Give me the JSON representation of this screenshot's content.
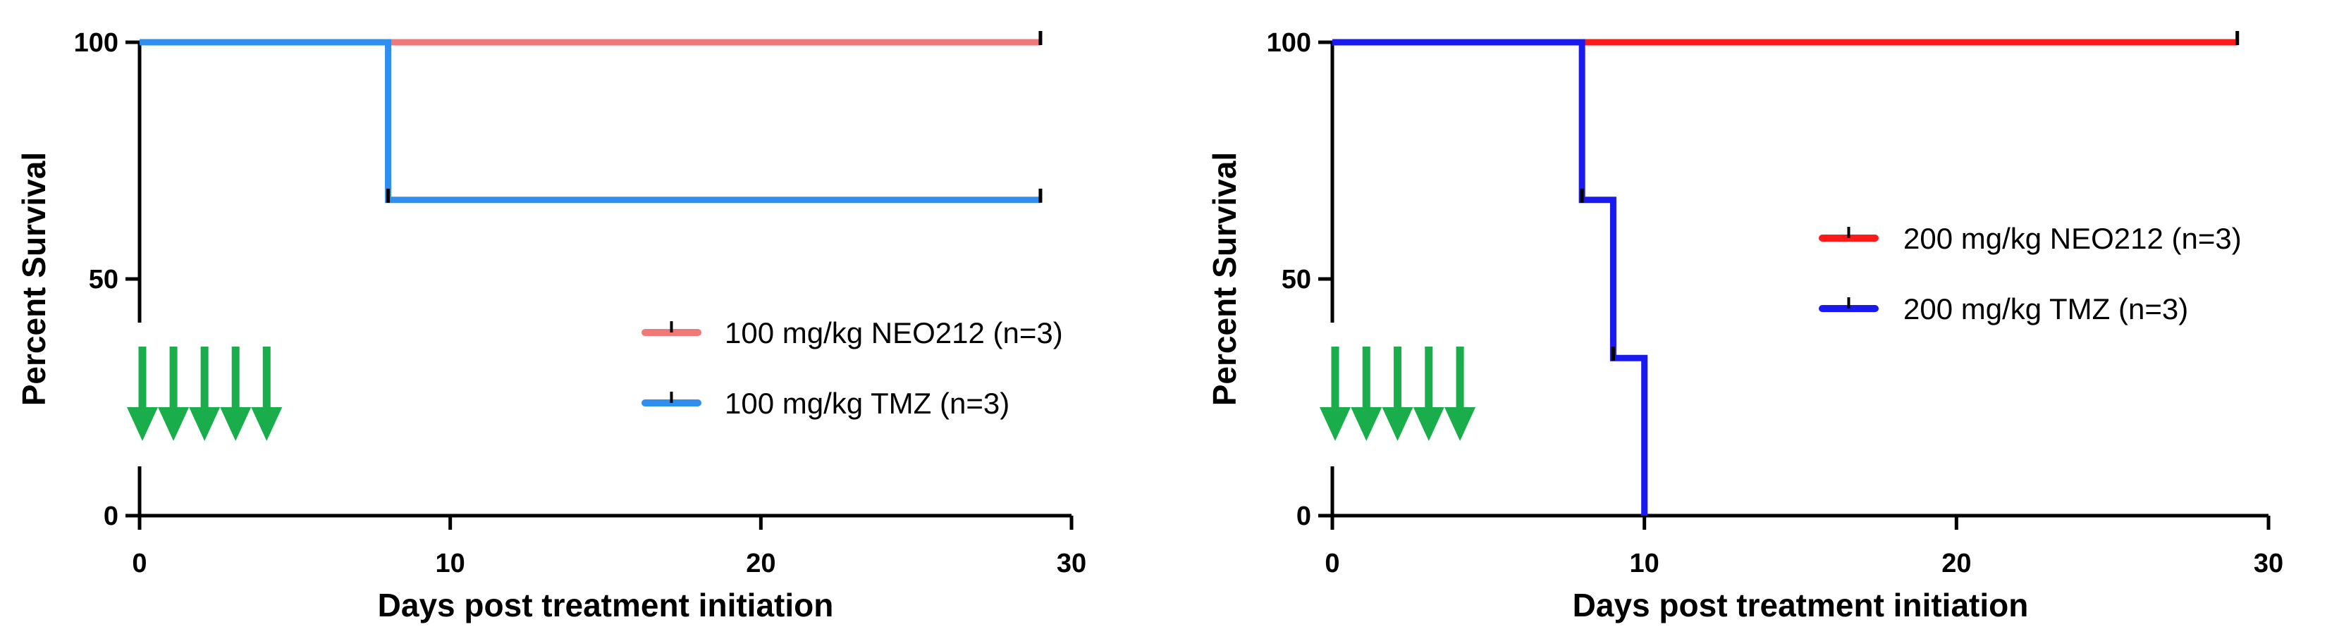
{
  "chart_data": [
    {
      "type": "line",
      "subtype": "kaplan-meier-step",
      "xlabel": "Days post treatment initiation",
      "ylabel": "Percent Survival",
      "xlim": [
        0,
        30
      ],
      "ylim": [
        0,
        100
      ],
      "xticks": [
        0,
        10,
        20,
        30
      ],
      "yticks": [
        0,
        50,
        100
      ],
      "legend_position": "right",
      "series": [
        {
          "name": "100 mg/kg NEO212 (n=3)",
          "color": "#f07878",
          "points": [
            [
              0,
              100
            ],
            [
              29,
              100
            ]
          ],
          "censor": [
            29
          ]
        },
        {
          "name": "100 mg/kg TMZ (n=3)",
          "color": "#2e8ff0",
          "points": [
            [
              0,
              100
            ],
            [
              8,
              100
            ],
            [
              8,
              66.7
            ],
            [
              29,
              66.7
            ]
          ],
          "censor": [
            8,
            29
          ]
        }
      ],
      "treatment_days": [
        0,
        1,
        2,
        3,
        4
      ],
      "arrow_color": "#1aad4b"
    },
    {
      "type": "line",
      "subtype": "kaplan-meier-step",
      "xlabel": "Days post treatment initiation",
      "ylabel": "Percent Survival",
      "xlim": [
        0,
        30
      ],
      "ylim": [
        0,
        100
      ],
      "xticks": [
        0,
        10,
        20,
        30
      ],
      "yticks": [
        0,
        50,
        100
      ],
      "legend_position": "right",
      "series": [
        {
          "name": "200 mg/kg NEO212 (n=3)",
          "color": "#ff1a1a",
          "points": [
            [
              0,
              100
            ],
            [
              29,
              100
            ]
          ],
          "censor": [
            29
          ]
        },
        {
          "name": "200 mg/kg TMZ (n=3)",
          "color": "#1a1af0",
          "points": [
            [
              0,
              100
            ],
            [
              8,
              100
            ],
            [
              8,
              66.7
            ],
            [
              9,
              66.7
            ],
            [
              9,
              33.3
            ],
            [
              10,
              33.3
            ],
            [
              10,
              0
            ]
          ],
          "censor": [
            8,
            9
          ]
        }
      ],
      "treatment_days": [
        0,
        1,
        2,
        3,
        4
      ],
      "arrow_color": "#1aad4b"
    }
  ]
}
